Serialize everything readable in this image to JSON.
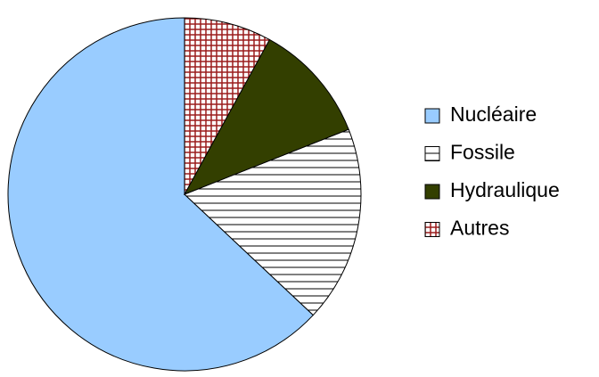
{
  "chart_data": {
    "type": "pie",
    "categories": [
      "Nucléaire",
      "Fossile",
      "Hydraulique",
      "Autres"
    ],
    "values": [
      63,
      18,
      11,
      8
    ],
    "colors": [
      "#99ccff",
      "#000000",
      "#333f00",
      "#9b1c1c"
    ],
    "patterns": [
      "solid",
      "horizontal-lines",
      "solid",
      "crosshatch"
    ],
    "legend": "right"
  }
}
